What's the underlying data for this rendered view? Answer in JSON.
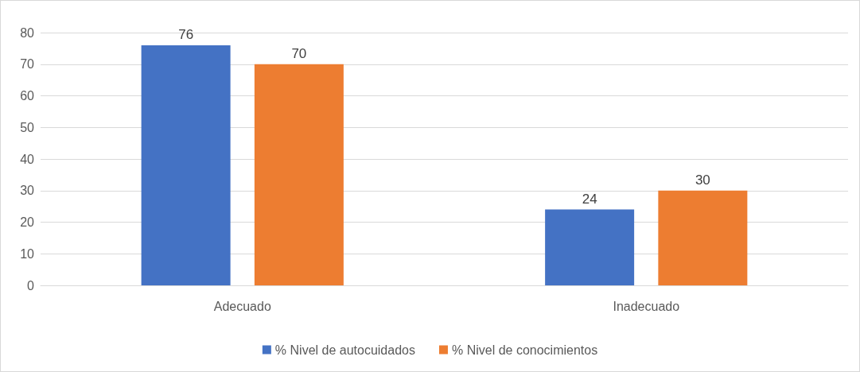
{
  "chart_data": {
    "type": "bar",
    "categories": [
      "Adecuado",
      "Inadecuado"
    ],
    "series": [
      {
        "name": "% Nivel de autocuidados",
        "color": "#4472c4",
        "values": [
          76,
          24
        ]
      },
      {
        "name": "% Nivel de conocimientos",
        "color": "#ed7d31",
        "values": [
          70,
          30
        ]
      }
    ],
    "ylim": [
      0,
      80
    ],
    "yticks": [
      0,
      10,
      20,
      30,
      40,
      50,
      60,
      70,
      80
    ],
    "grid": "y",
    "legend": "bottom",
    "data_labels": true
  }
}
